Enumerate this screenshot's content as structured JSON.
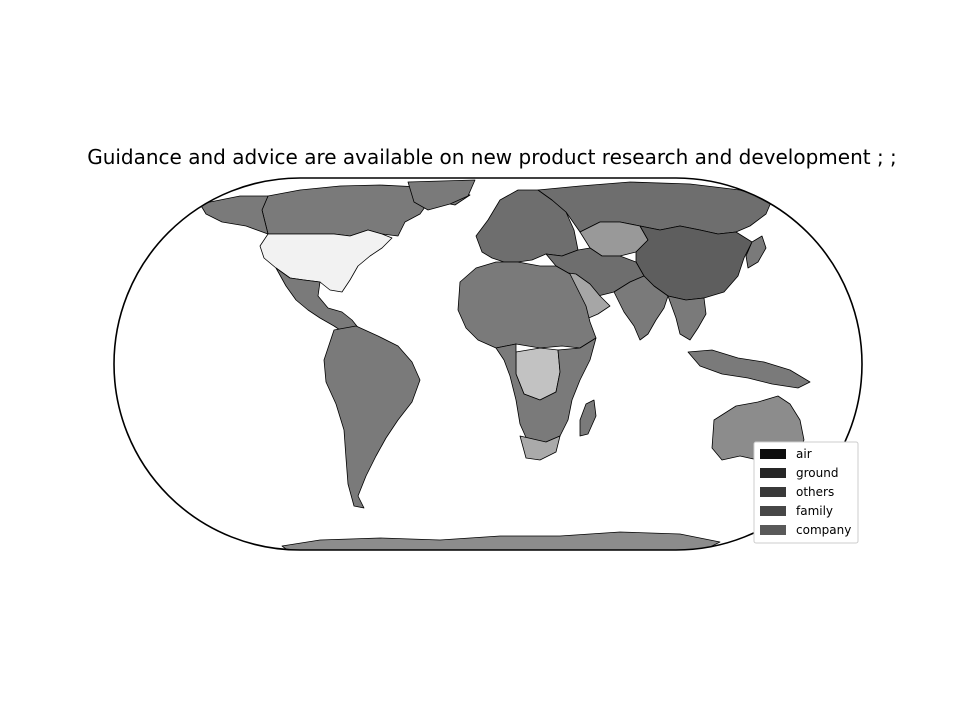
{
  "title": "Guidance and advice are available on new product research and development ; ;",
  "map": {
    "projection": "Eckert IV",
    "background_color": "#ffffff",
    "border_color": "#000000",
    "regions": [
      {
        "name": "Canada",
        "shade": "#7a7a7a"
      },
      {
        "name": "Alaska",
        "shade": "#7a7a7a"
      },
      {
        "name": "Greenland",
        "shade": "#7a7a7a"
      },
      {
        "name": "United States",
        "shade": "#f2f2f2"
      },
      {
        "name": "Mexico & Central America",
        "shade": "#7a7a7a"
      },
      {
        "name": "South America",
        "shade": "#7a7a7a"
      },
      {
        "name": "Europe",
        "shade": "#6e6e6e"
      },
      {
        "name": "Russia",
        "shade": "#6e6e6e"
      },
      {
        "name": "Kazakhstan",
        "shade": "#999999"
      },
      {
        "name": "China",
        "shade": "#5e5e5e"
      },
      {
        "name": "India",
        "shade": "#6e6e6e"
      },
      {
        "name": "Arabian Peninsula",
        "shade": "#a6a6a6"
      },
      {
        "name": "Middle East",
        "shade": "#7a7a7a"
      },
      {
        "name": "North Africa",
        "shade": "#7a7a7a"
      },
      {
        "name": "Central Africa",
        "shade": "#c2c2c2"
      },
      {
        "name": "Southern Africa",
        "shade": "#7a7a7a"
      },
      {
        "name": "South Africa",
        "shade": "#aaaaaa"
      },
      {
        "name": "Madagascar",
        "shade": "#7a7a7a"
      },
      {
        "name": "Southeast Asia",
        "shade": "#7a7a7a"
      },
      {
        "name": "Indonesia",
        "shade": "#7a7a7a"
      },
      {
        "name": "Japan",
        "shade": "#7a7a7a"
      },
      {
        "name": "Australia",
        "shade": "#8c8c8c"
      },
      {
        "name": "Antarctica",
        "shade": "#8c8c8c"
      }
    ]
  },
  "legend": {
    "placement": "lower-right",
    "items": [
      {
        "label": "air",
        "color": "#0d0d0d"
      },
      {
        "label": "ground",
        "color": "#262626"
      },
      {
        "label": "others",
        "color": "#393939"
      },
      {
        "label": "family",
        "color": "#474747"
      },
      {
        "label": "company",
        "color": "#595959"
      }
    ]
  }
}
